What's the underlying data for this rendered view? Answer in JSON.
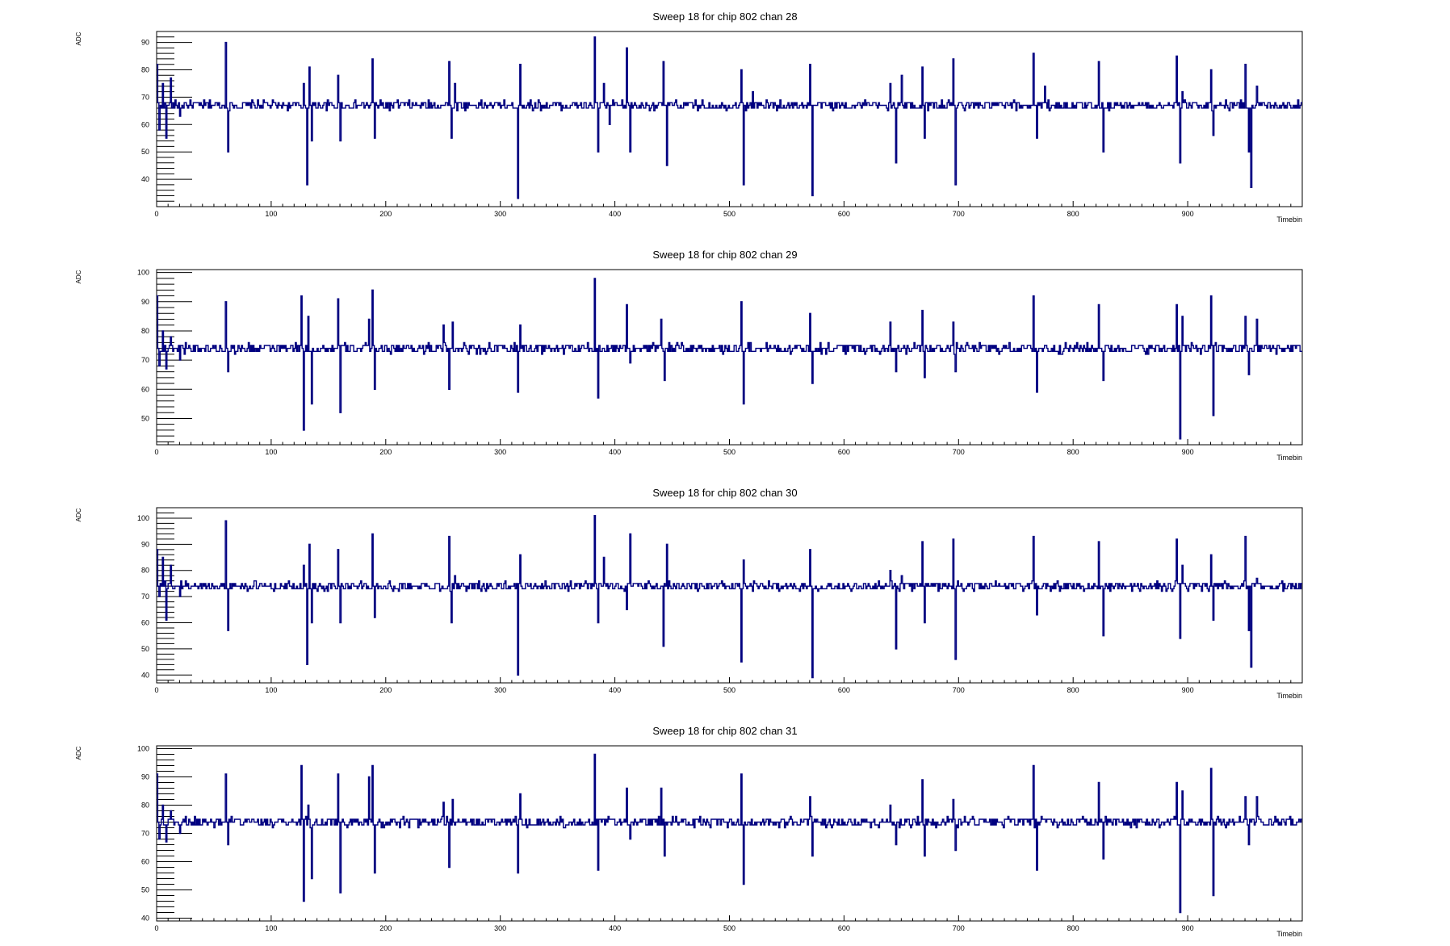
{
  "chart_data": [
    {
      "type": "line",
      "title": "Sweep 18 for chip 802 chan 28",
      "xlabel": "Timebin",
      "ylabel": "ADC",
      "xlim": [
        0,
        1000
      ],
      "ylim": [
        30,
        94
      ],
      "xticks": [
        0,
        100,
        200,
        300,
        400,
        500,
        600,
        700,
        800,
        900
      ],
      "yticks": [
        40,
        50,
        60,
        70,
        80,
        90
      ],
      "color": "#000080",
      "baseline": 67,
      "series": [
        {
          "x": [
            0,
            2,
            5,
            8,
            12,
            20,
            25,
            60,
            62,
            128,
            131,
            133,
            135,
            158,
            160,
            188,
            190,
            255,
            257,
            260,
            315,
            317,
            382,
            385,
            390,
            395,
            410,
            413,
            442,
            445,
            510,
            512,
            520,
            570,
            572,
            640,
            645,
            650,
            668,
            670,
            695,
            697,
            765,
            768,
            775,
            822,
            826,
            890,
            893,
            895,
            920,
            922,
            950,
            953,
            955,
            960,
            1000
          ],
          "y": [
            82,
            58,
            75,
            55,
            77,
            63,
            68,
            90,
            50,
            75,
            38,
            81,
            54,
            78,
            54,
            84,
            55,
            83,
            55,
            75,
            33,
            82,
            92,
            50,
            75,
            60,
            88,
            50,
            83,
            45,
            80,
            38,
            72,
            82,
            34,
            75,
            46,
            78,
            81,
            55,
            84,
            38,
            86,
            55,
            74,
            83,
            50,
            85,
            46,
            72,
            80,
            56,
            82,
            50,
            37,
            74,
            67
          ]
        }
      ]
    },
    {
      "type": "line",
      "title": "Sweep 18 for chip 802 chan 29",
      "xlabel": "Timebin",
      "ylabel": "ADC",
      "xlim": [
        0,
        1000
      ],
      "ylim": [
        41,
        101
      ],
      "xticks": [
        0,
        100,
        200,
        300,
        400,
        500,
        600,
        700,
        800,
        900
      ],
      "yticks": [
        50,
        60,
        70,
        80,
        90,
        100
      ],
      "color": "#000080",
      "baseline": 74,
      "series": [
        {
          "x": [
            0,
            2,
            5,
            8,
            12,
            20,
            25,
            60,
            62,
            126,
            128,
            132,
            135,
            158,
            160,
            185,
            188,
            190,
            250,
            255,
            258,
            315,
            317,
            382,
            385,
            410,
            413,
            440,
            443,
            510,
            512,
            520,
            570,
            572,
            640,
            645,
            668,
            670,
            695,
            697,
            765,
            768,
            775,
            822,
            826,
            890,
            893,
            895,
            920,
            922,
            950,
            953,
            955,
            960,
            1000
          ],
          "y": [
            92,
            68,
            80,
            67,
            78,
            70,
            76,
            90,
            66,
            92,
            46,
            85,
            55,
            91,
            52,
            84,
            94,
            60,
            82,
            60,
            83,
            59,
            82,
            98,
            57,
            89,
            69,
            84,
            63,
            90,
            55,
            73,
            86,
            62,
            83,
            66,
            87,
            64,
            83,
            66,
            92,
            59,
            75,
            89,
            63,
            89,
            43,
            85,
            92,
            51,
            85,
            65,
            74,
            84,
            74
          ]
        }
      ]
    },
    {
      "type": "line",
      "title": "Sweep 18 for chip 802 chan 30",
      "xlabel": "Timebin",
      "ylabel": "ADC",
      "xlim": [
        0,
        1000
      ],
      "ylim": [
        37,
        104
      ],
      "xticks": [
        0,
        100,
        200,
        300,
        400,
        500,
        600,
        700,
        800,
        900
      ],
      "yticks": [
        40,
        50,
        60,
        70,
        80,
        90,
        100
      ],
      "color": "#000080",
      "baseline": 74,
      "series": [
        {
          "x": [
            0,
            2,
            5,
            8,
            12,
            20,
            25,
            60,
            62,
            128,
            131,
            133,
            135,
            158,
            160,
            188,
            190,
            255,
            257,
            260,
            315,
            317,
            382,
            385,
            390,
            410,
            413,
            442,
            445,
            510,
            512,
            520,
            570,
            572,
            640,
            645,
            650,
            668,
            670,
            695,
            697,
            765,
            768,
            775,
            822,
            826,
            890,
            893,
            895,
            920,
            922,
            950,
            953,
            955,
            960,
            1000
          ],
          "y": [
            88,
            70,
            85,
            61,
            82,
            70,
            76,
            99,
            57,
            82,
            44,
            90,
            60,
            88,
            60,
            94,
            62,
            93,
            60,
            78,
            40,
            86,
            101,
            60,
            85,
            65,
            94,
            51,
            90,
            45,
            84,
            72,
            88,
            39,
            80,
            50,
            78,
            91,
            60,
            92,
            46,
            93,
            63,
            75,
            91,
            55,
            92,
            54,
            82,
            86,
            61,
            93,
            57,
            43,
            77,
            74
          ]
        }
      ]
    },
    {
      "type": "line",
      "title": "Sweep 18 for chip 802 chan 31",
      "xlabel": "Timebin",
      "ylabel": "ADC",
      "xlim": [
        0,
        1000
      ],
      "ylim": [
        39,
        101
      ],
      "xticks": [
        0,
        100,
        200,
        300,
        400,
        500,
        600,
        700,
        800,
        900
      ],
      "yticks": [
        40,
        50,
        60,
        70,
        80,
        90,
        100
      ],
      "color": "#000080",
      "baseline": 74,
      "series": [
        {
          "x": [
            0,
            2,
            5,
            8,
            12,
            20,
            25,
            60,
            62,
            126,
            128,
            132,
            135,
            158,
            160,
            185,
            188,
            190,
            250,
            255,
            258,
            315,
            317,
            382,
            385,
            410,
            413,
            440,
            443,
            510,
            512,
            520,
            570,
            572,
            640,
            645,
            668,
            670,
            695,
            697,
            765,
            768,
            775,
            822,
            826,
            890,
            893,
            895,
            920,
            922,
            950,
            953,
            955,
            960,
            1000
          ],
          "y": [
            91,
            68,
            80,
            67,
            78,
            70,
            76,
            91,
            66,
            94,
            46,
            80,
            54,
            91,
            49,
            90,
            94,
            56,
            81,
            58,
            82,
            56,
            84,
            98,
            57,
            86,
            68,
            86,
            62,
            91,
            52,
            73,
            83,
            62,
            80,
            66,
            89,
            62,
            82,
            64,
            94,
            57,
            75,
            88,
            61,
            88,
            42,
            85,
            93,
            48,
            83,
            66,
            74,
            83,
            76
          ]
        }
      ]
    }
  ]
}
